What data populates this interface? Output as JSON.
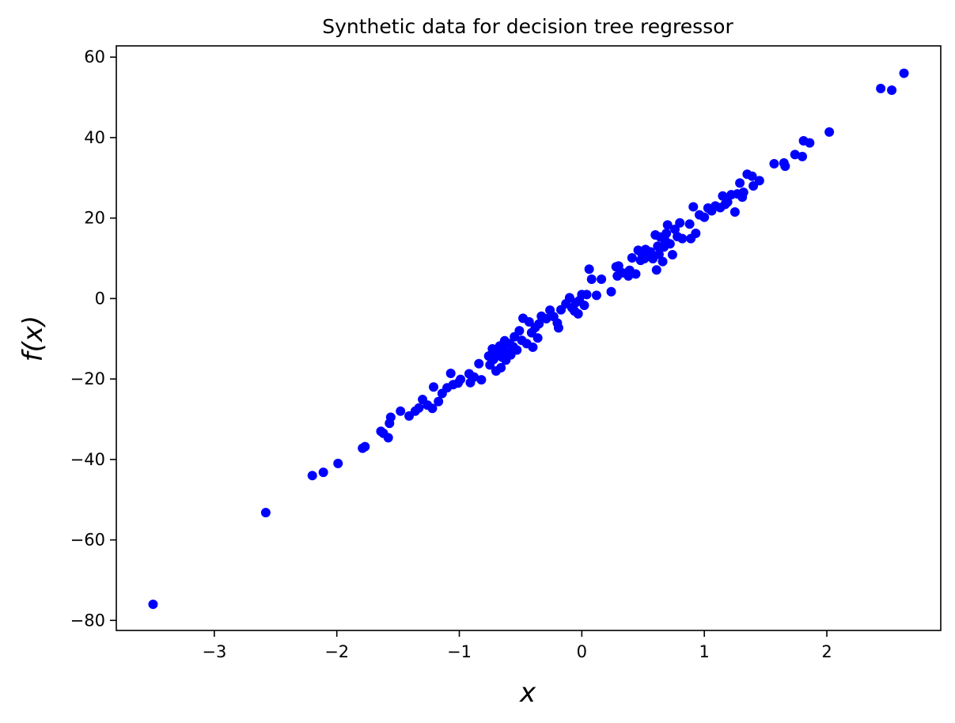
{
  "chart_data": {
    "type": "scatter",
    "title": "Synthetic data for decision tree regressor",
    "xlabel": "x",
    "ylabel": "f(x)",
    "xlim": [
      -3.8,
      2.93
    ],
    "ylim": [
      -82.5,
      62.8
    ],
    "xticks": [
      -3,
      -2,
      -1,
      0,
      1,
      2
    ],
    "yticks": [
      -80,
      -60,
      -40,
      -20,
      0,
      20,
      40,
      60
    ],
    "xtick_labels": [
      "−3",
      "−2",
      "−1",
      "0",
      "1",
      "2"
    ],
    "ytick_labels": [
      "−80",
      "−60",
      "−40",
      "−20",
      "0",
      "20",
      "40",
      "60"
    ],
    "grid": false,
    "marker_color": "#0000ff",
    "series": [
      {
        "points": [
          [
            -3.5,
            -76.0
          ],
          [
            -2.58,
            -53.2
          ],
          [
            -2.2,
            -44.0
          ],
          [
            -2.11,
            -43.2
          ],
          [
            -1.99,
            -41.0
          ],
          [
            -1.79,
            -37.2
          ],
          [
            -1.77,
            -36.8
          ],
          [
            -1.64,
            -33.0
          ],
          [
            -1.62,
            -33.5
          ],
          [
            -1.58,
            -34.6
          ],
          [
            -1.57,
            -31.0
          ],
          [
            -1.56,
            -29.5
          ],
          [
            -1.48,
            -28.0
          ],
          [
            -1.41,
            -29.2
          ],
          [
            -1.36,
            -28.0
          ],
          [
            -1.33,
            -27.2
          ],
          [
            -1.3,
            -25.1
          ],
          [
            -1.26,
            -26.5
          ],
          [
            -1.22,
            -27.3
          ],
          [
            -1.21,
            -22.0
          ],
          [
            -1.17,
            -25.6
          ],
          [
            -1.14,
            -23.6
          ],
          [
            -1.1,
            -22.2
          ],
          [
            -1.07,
            -18.6
          ],
          [
            -1.05,
            -21.4
          ],
          [
            -1.01,
            -21.0
          ],
          [
            -0.99,
            -20.1
          ],
          [
            -0.92,
            -18.7
          ],
          [
            -0.91,
            -20.9
          ],
          [
            -0.88,
            -19.5
          ],
          [
            -0.84,
            -16.2
          ],
          [
            -0.82,
            -20.2
          ],
          [
            -0.76,
            -14.3
          ],
          [
            -0.75,
            -16.5
          ],
          [
            -0.73,
            -12.5
          ],
          [
            -0.72,
            -15.1
          ],
          [
            -0.7,
            -18.0
          ],
          [
            -0.69,
            -13.3
          ],
          [
            -0.67,
            -11.8
          ],
          [
            -0.66,
            -17.2
          ],
          [
            -0.65,
            -14.6
          ],
          [
            -0.64,
            -12.7
          ],
          [
            -0.63,
            -10.5
          ],
          [
            -0.62,
            -15.3
          ],
          [
            -0.61,
            -13.5
          ],
          [
            -0.59,
            -11.2
          ],
          [
            -0.58,
            -14.0
          ],
          [
            -0.56,
            -12.0
          ],
          [
            -0.55,
            -9.5
          ],
          [
            -0.53,
            -12.8
          ],
          [
            -0.51,
            -8.0
          ],
          [
            -0.49,
            -10.4
          ],
          [
            -0.48,
            -4.9
          ],
          [
            -0.45,
            -11.2
          ],
          [
            -0.43,
            -5.8
          ],
          [
            -0.41,
            -8.5
          ],
          [
            -0.4,
            -12.1
          ],
          [
            -0.38,
            -7.2
          ],
          [
            -0.36,
            -9.8
          ],
          [
            -0.35,
            -6.3
          ],
          [
            -0.33,
            -4.4
          ],
          [
            -0.29,
            -5.0
          ],
          [
            -0.26,
            -2.9
          ],
          [
            -0.23,
            -4.5
          ],
          [
            -0.2,
            -6.1
          ],
          [
            -0.19,
            -7.3
          ],
          [
            -0.17,
            -2.8
          ],
          [
            -0.13,
            -1.3
          ],
          [
            -0.1,
            0.2
          ],
          [
            -0.08,
            -2.3
          ],
          [
            -0.06,
            -3.1
          ],
          [
            -0.05,
            -1.0
          ],
          [
            -0.03,
            -3.8
          ],
          [
            -0.02,
            -0.5
          ],
          [
            0.0,
            1.0
          ],
          [
            0.02,
            -1.7
          ],
          [
            0.04,
            1.0
          ],
          [
            0.06,
            7.3
          ],
          [
            0.08,
            4.8
          ],
          [
            0.12,
            0.8
          ],
          [
            0.16,
            4.8
          ],
          [
            0.24,
            1.7
          ],
          [
            0.28,
            7.9
          ],
          [
            0.29,
            5.6
          ],
          [
            0.3,
            8.1
          ],
          [
            0.33,
            6.4
          ],
          [
            0.38,
            5.6
          ],
          [
            0.39,
            7.0
          ],
          [
            0.41,
            10.1
          ],
          [
            0.44,
            6.1
          ],
          [
            0.46,
            12.0
          ],
          [
            0.48,
            9.5
          ],
          [
            0.49,
            11.2
          ],
          [
            0.51,
            9.9
          ],
          [
            0.52,
            12.2
          ],
          [
            0.54,
            10.5
          ],
          [
            0.56,
            11.6
          ],
          [
            0.58,
            9.9
          ],
          [
            0.6,
            15.8
          ],
          [
            0.61,
            7.1
          ],
          [
            0.62,
            13.0
          ],
          [
            0.63,
            11.0
          ],
          [
            0.64,
            15.3
          ],
          [
            0.66,
            9.2
          ],
          [
            0.67,
            12.8
          ],
          [
            0.68,
            14.4
          ],
          [
            0.69,
            16.2
          ],
          [
            0.7,
            18.3
          ],
          [
            0.72,
            13.6
          ],
          [
            0.74,
            10.9
          ],
          [
            0.76,
            17.2
          ],
          [
            0.78,
            15.4
          ],
          [
            0.8,
            18.8
          ],
          [
            0.82,
            14.9
          ],
          [
            0.88,
            18.5
          ],
          [
            0.89,
            14.9
          ],
          [
            0.91,
            22.8
          ],
          [
            0.93,
            16.2
          ],
          [
            0.96,
            20.8
          ],
          [
            1.0,
            20.2
          ],
          [
            1.03,
            22.5
          ],
          [
            1.06,
            21.8
          ],
          [
            1.09,
            23.0
          ],
          [
            1.13,
            22.6
          ],
          [
            1.15,
            25.5
          ],
          [
            1.17,
            23.4
          ],
          [
            1.19,
            24.0
          ],
          [
            1.22,
            25.8
          ],
          [
            1.25,
            21.5
          ],
          [
            1.27,
            26.0
          ],
          [
            1.29,
            28.7
          ],
          [
            1.31,
            25.2
          ],
          [
            1.32,
            26.4
          ],
          [
            1.35,
            30.9
          ],
          [
            1.39,
            30.4
          ],
          [
            1.4,
            28.0
          ],
          [
            1.45,
            29.3
          ],
          [
            1.57,
            33.5
          ],
          [
            1.65,
            33.7
          ],
          [
            1.66,
            32.9
          ],
          [
            1.74,
            35.8
          ],
          [
            1.8,
            35.3
          ],
          [
            1.81,
            39.2
          ],
          [
            1.86,
            38.7
          ],
          [
            2.02,
            41.4
          ],
          [
            2.44,
            52.2
          ],
          [
            2.53,
            51.8
          ],
          [
            2.63,
            56.0
          ]
        ]
      }
    ]
  }
}
